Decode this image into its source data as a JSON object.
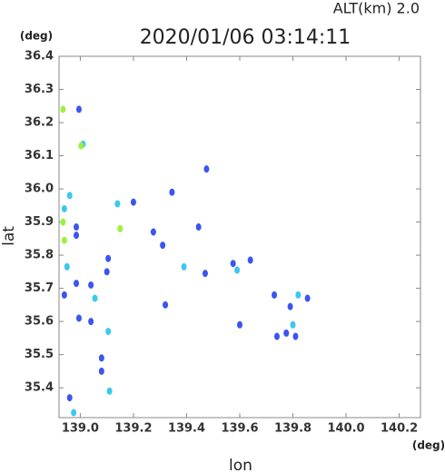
{
  "chart_data": {
    "type": "scatter",
    "title": "2020/01/06 03:14:11",
    "subtitle": "ALT(km)  2.0",
    "x_label": "lon",
    "y_label": "lat",
    "x_unit": "(deg)",
    "y_unit": "(deg)",
    "xlim": [
      138.92,
      140.28
    ],
    "ylim": [
      35.31,
      36.4
    ],
    "xticks": [
      {
        "value": 139,
        "label": "139.0"
      },
      139.2,
      139.4,
      139.6,
      139.8,
      {
        "value": 140,
        "label": "140.0"
      },
      140.2
    ],
    "yticks": [
      35.4,
      35.5,
      35.6,
      35.7,
      35.8,
      35.9,
      {
        "value": 36,
        "label": "36.0"
      },
      36.1,
      36.2,
      36.3,
      36.4
    ],
    "series": [
      {
        "color": "#3a55f0",
        "x": [
          138.995,
          138.985,
          138.985,
          138.94,
          138.985,
          139.04,
          139.1,
          139.105,
          139.04,
          138.995,
          139.08,
          139.08,
          138.96,
          139.475,
          139.345,
          139.2,
          139.275,
          139.31,
          139.32,
          139.47,
          139.575,
          139.64,
          139.6,
          139.73,
          139.79,
          139.855,
          139.775,
          139.74,
          139.81,
          139.445
        ],
        "y": [
          36.24,
          35.885,
          35.86,
          35.68,
          35.715,
          35.71,
          35.75,
          35.79,
          35.6,
          35.61,
          35.49,
          35.45,
          35.37,
          36.06,
          35.99,
          35.96,
          35.87,
          35.83,
          35.65,
          35.745,
          35.775,
          35.785,
          35.59,
          35.68,
          35.645,
          35.67,
          35.565,
          35.555,
          35.555,
          35.885
        ]
      },
      {
        "color": "#3cc8f0",
        "x": [
          139.01,
          138.96,
          138.94,
          138.95,
          139.055,
          139.105,
          139.11,
          138.975,
          139.14,
          139.39,
          139.59,
          139.82,
          139.8
        ],
        "y": [
          36.135,
          35.98,
          35.94,
          35.765,
          35.67,
          35.57,
          35.39,
          35.325,
          35.955,
          35.765,
          35.755,
          35.68,
          35.59
        ]
      },
      {
        "color": "#9ef040",
        "x": [
          138.935,
          139.003,
          138.935,
          138.94,
          139.15
        ],
        "y": [
          36.24,
          36.13,
          35.9,
          35.845,
          35.88
        ]
      }
    ]
  }
}
